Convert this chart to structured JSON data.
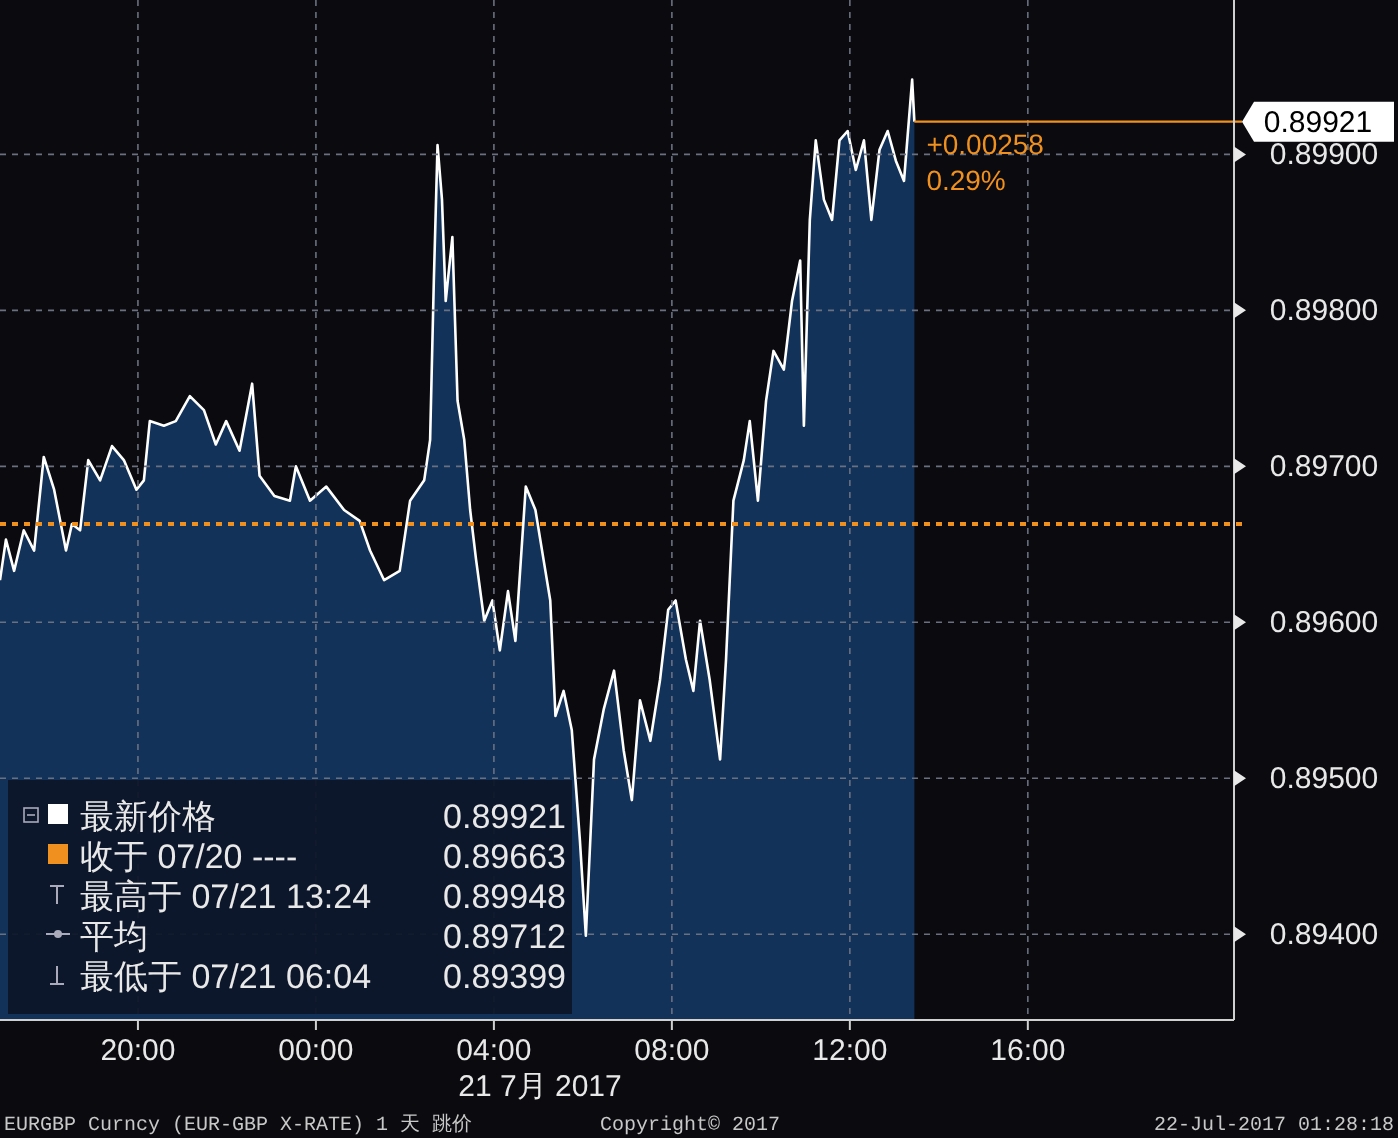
{
  "chart_data": {
    "type": "area",
    "xlabel": "21 7月 2017",
    "x": [
      "2017-07-20T16:54",
      "2017-07-20T17:02",
      "2017-07-20T17:13",
      "2017-07-20T17:26",
      "2017-07-20T17:40",
      "2017-07-20T17:53",
      "2017-07-20T18:07",
      "2017-07-20T18:23",
      "2017-07-20T18:31",
      "2017-07-20T18:42",
      "2017-07-20T18:53",
      "2017-07-20T19:09",
      "2017-07-20T19:25",
      "2017-07-20T19:41",
      "2017-07-20T19:58",
      "2017-07-20T20:08",
      "2017-07-20T20:16",
      "2017-07-20T20:35",
      "2017-07-20T20:51",
      "2017-07-20T21:10",
      "2017-07-20T21:29",
      "2017-07-20T21:45",
      "2017-07-20T21:59",
      "2017-07-20T22:17",
      "2017-07-20T22:34",
      "2017-07-20T22:44",
      "2017-07-20T23:04",
      "2017-07-20T23:25",
      "2017-07-20T23:33",
      "2017-07-20T23:52",
      "2017-07-21T00:14",
      "2017-07-21T00:38",
      "2017-07-21T00:59",
      "2017-07-21T01:13",
      "2017-07-21T01:32",
      "2017-07-21T01:53",
      "2017-07-21T02:07",
      "2017-07-21T02:26",
      "2017-07-21T02:34",
      "2017-07-21T02:39",
      "2017-07-21T02:44",
      "2017-07-21T02:50",
      "2017-07-21T02:55",
      "2017-07-21T03:04",
      "2017-07-21T03:11",
      "2017-07-21T03:20",
      "2017-07-21T03:28",
      "2017-07-21T03:36",
      "2017-07-21T03:47",
      "2017-07-21T03:58",
      "2017-07-21T04:08",
      "2017-07-21T04:19",
      "2017-07-21T04:29",
      "2017-07-21T04:43",
      "2017-07-21T04:56",
      "2017-07-21T05:07",
      "2017-07-21T05:16",
      "2017-07-21T05:23",
      "2017-07-21T05:34",
      "2017-07-21T05:45",
      "2017-07-21T05:56",
      "2017-07-21T06:04",
      "2017-07-21T06:15",
      "2017-07-21T06:28",
      "2017-07-21T06:42",
      "2017-07-21T06:55",
      "2017-07-21T07:06",
      "2017-07-21T07:17",
      "2017-07-21T07:31",
      "2017-07-21T07:44",
      "2017-07-21T07:55",
      "2017-07-21T08:05",
      "2017-07-21T08:19",
      "2017-07-21T08:29",
      "2017-07-21T08:38",
      "2017-07-21T08:51",
      "2017-07-21T09:05",
      "2017-07-21T09:13",
      "2017-07-21T09:23",
      "2017-07-21T09:37",
      "2017-07-21T09:45",
      "2017-07-21T09:56",
      "2017-07-21T10:07",
      "2017-07-21T10:17",
      "2017-07-21T10:31",
      "2017-07-21T10:42",
      "2017-07-21T10:53",
      "2017-07-21T10:58",
      "2017-07-21T11:06",
      "2017-07-21T11:14",
      "2017-07-21T11:25",
      "2017-07-21T11:36",
      "2017-07-21T11:46",
      "2017-07-21T11:57",
      "2017-07-21T12:08",
      "2017-07-21T12:19",
      "2017-07-21T12:29",
      "2017-07-21T12:40",
      "2017-07-21T12:51",
      "2017-07-21T13:02",
      "2017-07-21T13:13",
      "2017-07-21T13:24",
      "2017-07-21T13:27"
    ],
    "series": [
      {
        "color": "#12325a",
        "values": [
          0.89627,
          0.89653,
          0.89633,
          0.89659,
          0.89646,
          0.89706,
          0.89685,
          0.89646,
          0.89663,
          0.89659,
          0.89704,
          0.89691,
          0.89713,
          0.89704,
          0.89685,
          0.89691,
          0.89729,
          0.89726,
          0.89729,
          0.89745,
          0.89736,
          0.89714,
          0.89729,
          0.8971,
          0.89753,
          0.89694,
          0.89681,
          0.89678,
          0.897,
          0.89678,
          0.89687,
          0.89672,
          0.89665,
          0.89646,
          0.89627,
          0.89633,
          0.89678,
          0.89691,
          0.89717,
          0.89819,
          0.89906,
          0.89871,
          0.89806,
          0.89847,
          0.89742,
          0.89717,
          0.89672,
          0.8964,
          0.89601,
          0.89614,
          0.89582,
          0.8962,
          0.89588,
          0.89687,
          0.89672,
          0.8964,
          0.89614,
          0.8954,
          0.89556,
          0.89531,
          0.8946,
          0.89399,
          0.89512,
          0.89544,
          0.89569,
          0.89518,
          0.89486,
          0.8955,
          0.89524,
          0.89563,
          0.89608,
          0.89614,
          0.89576,
          0.89556,
          0.89601,
          0.89563,
          0.89512,
          0.89576,
          0.89678,
          0.89704,
          0.89729,
          0.89678,
          0.89742,
          0.89774,
          0.89762,
          0.89806,
          0.89832,
          0.89726,
          0.89858,
          0.89909,
          0.89871,
          0.89858,
          0.89909,
          0.89915,
          0.8989,
          0.89909,
          0.89858,
          0.89903,
          0.89915,
          0.89896,
          0.89883,
          0.89948,
          0.89921
        ]
      }
    ],
    "xlim": [
      "2017-07-20T16:54",
      "2017-07-21T20:38"
    ],
    "xticks": [
      {
        "value": "2017-07-20T20:00",
        "label": "20:00"
      },
      {
        "value": "2017-07-21T00:00",
        "label": "00:00"
      },
      {
        "value": "2017-07-21T04:00",
        "label": "04:00"
      },
      {
        "value": "2017-07-21T08:00",
        "label": "08:00"
      },
      {
        "value": "2017-07-21T12:00",
        "label": "12:00"
      },
      {
        "value": "2017-07-21T16:00",
        "label": "16:00"
      }
    ],
    "ylim": [
      0.89345,
      0.89999
    ],
    "yticks": [
      {
        "value": 0.894,
        "label": "0.89400"
      },
      {
        "value": 0.895,
        "label": "0.89500"
      },
      {
        "value": 0.896,
        "label": "0.89600"
      },
      {
        "value": 0.897,
        "label": "0.89700"
      },
      {
        "value": 0.898,
        "label": "0.89800"
      },
      {
        "value": 0.899,
        "label": "0.89900"
      }
    ],
    "grid": true,
    "ref_lines": [
      {
        "axis": "y",
        "value": 0.89663,
        "label": null,
        "color": "#f0901e",
        "line_style": "dotted"
      },
      {
        "axis": "y",
        "value": 0.89921,
        "label": "0.89921",
        "color": "#f0901e",
        "line_style": "solid"
      }
    ],
    "annotations": [
      "+0.00258",
      "0.29%",
      "最新价格",
      "0.89921",
      "收于 07/20 ----",
      "0.89663",
      "最高于 07/21 13:24",
      "0.89948",
      "平均",
      "0.89712",
      "最低于 07/21 06:04",
      "0.89399",
      "EURGBP Curncy (EUR-GBP X-RATE) 1 天  跳价",
      "Copyright© 2017",
      "22-Jul-2017 01:28:18"
    ]
  }
}
